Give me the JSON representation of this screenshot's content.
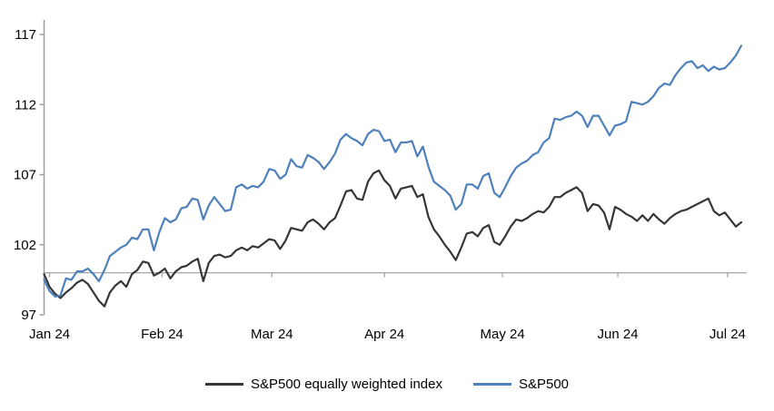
{
  "chart_data": {
    "type": "line",
    "title": "",
    "xlabel": "",
    "ylabel": "",
    "ylim": [
      97,
      117
    ],
    "y_ticks": [
      97,
      102,
      107,
      112,
      117
    ],
    "x_tick_labels": [
      "Jan 24",
      "Feb 24",
      "Mar 24",
      "Apr 24",
      "May 24",
      "Jun 24",
      "Jul 24"
    ],
    "x_tick_indices": [
      1,
      21.5,
      41.5,
      62,
      83.5,
      104.5,
      124.5
    ],
    "baseline_value": 100,
    "grid": false,
    "legend_position": "bottom-center",
    "series": [
      {
        "name": "S&P500 equally weighted index",
        "color": "#363636",
        "values": [
          99.9,
          99.0,
          98.5,
          98.2,
          98.6,
          98.9,
          99.3,
          99.5,
          99.2,
          98.6,
          98.0,
          97.6,
          98.6,
          99.1,
          99.4,
          99.0,
          99.9,
          100.2,
          100.8,
          100.7,
          99.8,
          100.0,
          100.3,
          99.6,
          100.1,
          100.4,
          100.5,
          100.8,
          101.0,
          99.4,
          100.7,
          101.2,
          101.3,
          101.1,
          101.2,
          101.6,
          101.8,
          101.6,
          101.9,
          101.8,
          102.1,
          102.4,
          102.3,
          101.7,
          102.3,
          103.2,
          103.1,
          103.0,
          103.6,
          103.8,
          103.5,
          103.1,
          103.6,
          103.9,
          104.8,
          105.8,
          105.9,
          105.3,
          105.2,
          106.5,
          107.1,
          107.3,
          106.6,
          106.2,
          105.3,
          106.0,
          106.1,
          106.2,
          105.4,
          105.6,
          104.0,
          103.1,
          102.6,
          102.0,
          101.5,
          100.9,
          101.8,
          102.8,
          102.9,
          102.6,
          103.2,
          103.4,
          102.2,
          102.0,
          102.6,
          103.3,
          103.8,
          103.7,
          103.9,
          104.2,
          104.4,
          104.3,
          104.7,
          105.4,
          105.4,
          105.7,
          105.9,
          106.1,
          105.7,
          104.4,
          104.9,
          104.8,
          104.3,
          103.1,
          104.7,
          104.5,
          104.2,
          104.0,
          103.7,
          104.1,
          103.7,
          104.2,
          103.8,
          103.5,
          103.9,
          104.2,
          104.4,
          104.5,
          104.7,
          104.9,
          105.1,
          105.3,
          104.4,
          104.1,
          104.3,
          103.8,
          103.3,
          103.6
        ]
      },
      {
        "name": "S&P500",
        "color": "#4e81bb",
        "values": [
          99.5,
          98.7,
          98.3,
          98.4,
          99.6,
          99.5,
          100.1,
          100.1,
          100.3,
          99.9,
          99.4,
          100.2,
          101.2,
          101.5,
          101.8,
          102.0,
          102.5,
          102.4,
          103.1,
          103.1,
          101.6,
          102.9,
          103.9,
          103.6,
          103.8,
          104.6,
          104.7,
          105.3,
          105.2,
          103.8,
          104.8,
          105.4,
          104.9,
          104.4,
          104.5,
          106.1,
          106.3,
          106.0,
          106.2,
          106.1,
          106.5,
          107.4,
          107.3,
          106.7,
          107.0,
          108.1,
          107.6,
          107.5,
          108.4,
          108.2,
          107.9,
          107.4,
          107.9,
          108.5,
          109.5,
          109.9,
          109.6,
          109.4,
          109.1,
          109.9,
          110.2,
          110.1,
          109.4,
          109.5,
          108.6,
          109.3,
          109.3,
          109.4,
          108.3,
          109.0,
          107.6,
          106.5,
          106.2,
          105.9,
          105.5,
          104.5,
          104.9,
          106.3,
          106.3,
          106.0,
          106.9,
          107.1,
          105.7,
          105.4,
          106.1,
          106.9,
          107.5,
          107.8,
          108.0,
          108.4,
          108.6,
          109.3,
          109.6,
          111.0,
          110.9,
          111.1,
          111.2,
          111.5,
          111.2,
          110.4,
          111.2,
          111.2,
          110.5,
          109.8,
          110.5,
          110.6,
          110.8,
          112.2,
          112.1,
          112.0,
          112.2,
          112.6,
          113.2,
          113.5,
          113.4,
          114.1,
          114.6,
          115.0,
          115.1,
          114.6,
          114.8,
          114.4,
          114.7,
          114.5,
          114.6,
          115.0,
          115.5,
          116.2
        ]
      }
    ]
  },
  "colors": {
    "axis": "#9a9a9a",
    "baseline": "#a6a6a6",
    "text": "#000000",
    "background": "#ffffff"
  }
}
